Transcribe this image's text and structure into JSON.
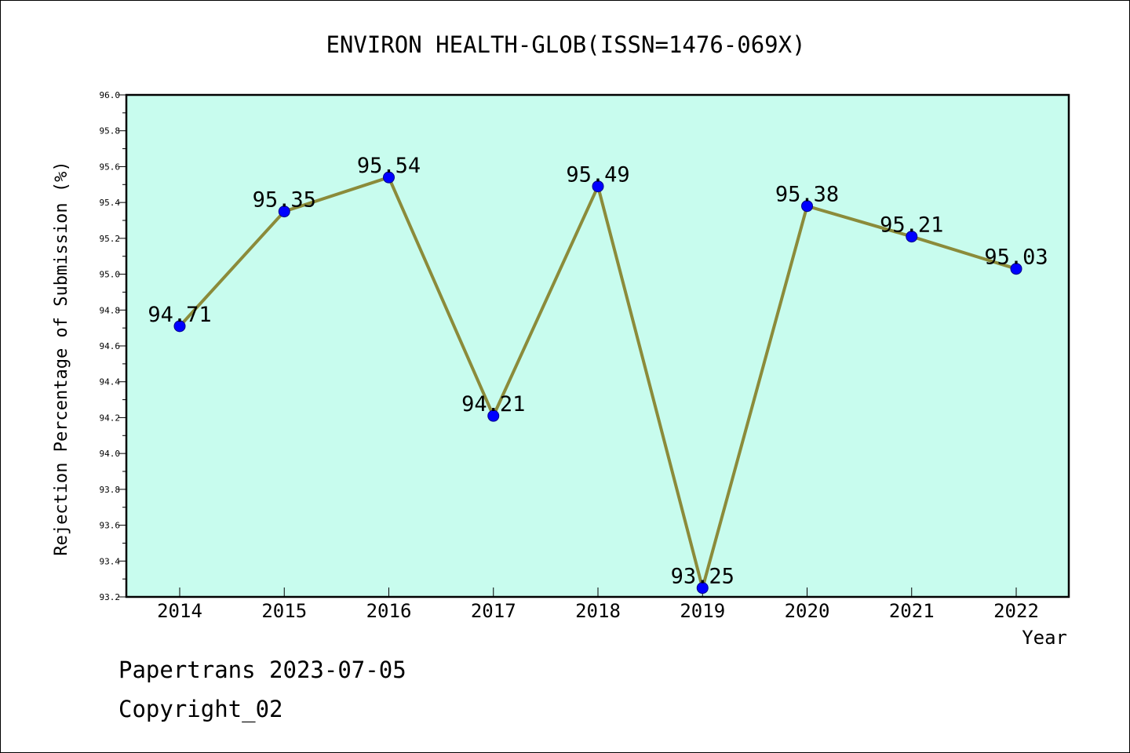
{
  "chart_data": {
    "type": "line",
    "title": "ENVIRON HEALTH-GLOB(ISSN=1476-069X)",
    "xlabel": "Year",
    "ylabel": "Rejection Percentage of Submission (%)",
    "categories": [
      "2014",
      "2015",
      "2016",
      "2017",
      "2018",
      "2019",
      "2020",
      "2021",
      "2022"
    ],
    "values": [
      94.71,
      95.35,
      95.54,
      94.21,
      95.49,
      93.25,
      95.38,
      95.21,
      95.03
    ],
    "data_labels": [
      "94.71",
      "95.35",
      "95.54",
      "94.21",
      "95.49",
      "93.25",
      "95.38",
      "95.21",
      "95.03"
    ],
    "ylim": [
      93.2,
      96.0
    ],
    "yticks": [
      "93.2",
      "93.4",
      "93.6",
      "93.8",
      "94.0",
      "94.2",
      "94.4",
      "94.6",
      "94.8",
      "95.0",
      "95.2",
      "95.4",
      "95.6",
      "95.8",
      "96.0"
    ],
    "grid": false,
    "colors": {
      "plot_background": "#c8fcee",
      "line": "#8b8b3a",
      "marker": "#0000ff"
    }
  },
  "footer": {
    "line1": "Papertrans 2023-07-05",
    "line2": "Copyright_02"
  }
}
